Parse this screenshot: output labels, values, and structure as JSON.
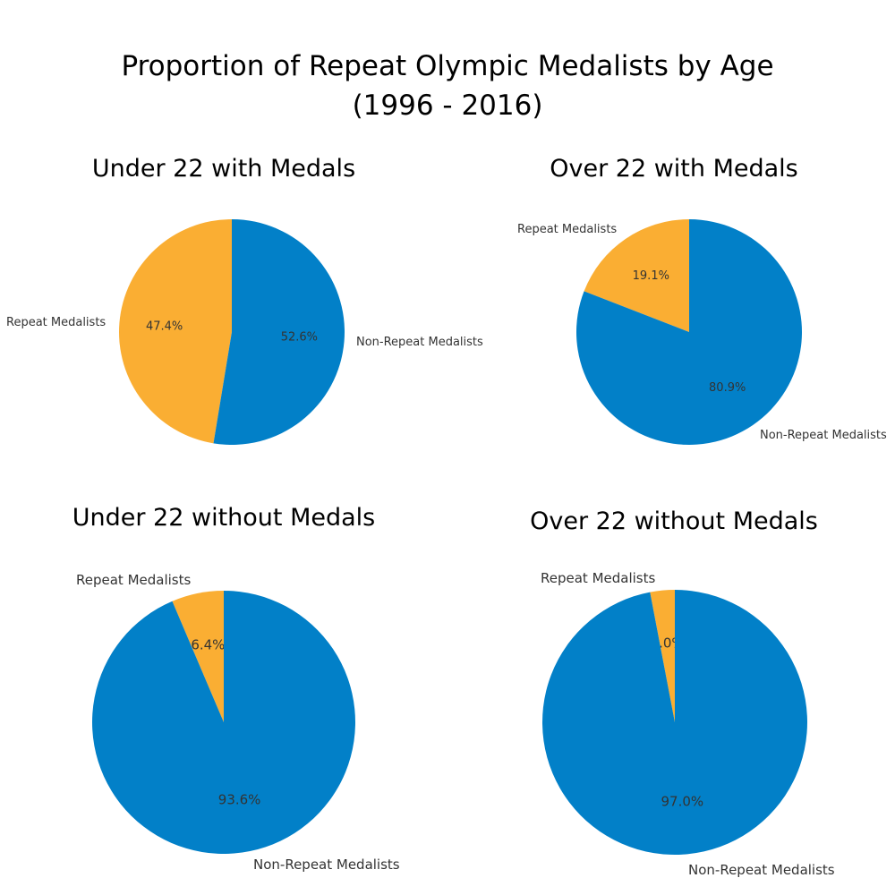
{
  "title_line1": "Proportion of Repeat Olympic Medalists by Age",
  "title_line2": "(1996 - 2016)",
  "colors": {
    "repeat": "#FAAE33",
    "non_repeat": "#0280C8"
  },
  "chart_data": [
    {
      "type": "pie",
      "title": "Under 22 with Medals",
      "labels": [
        "Repeat Medalists",
        "Non-Repeat Medalists"
      ],
      "values": [
        47.4,
        52.6
      ],
      "value_labels": [
        "47.4%",
        "52.6%"
      ]
    },
    {
      "type": "pie",
      "title": "Over 22 with Medals",
      "labels": [
        "Repeat Medalists",
        "Non-Repeat Medalists"
      ],
      "values": [
        19.1,
        80.9
      ],
      "value_labels": [
        "19.1%",
        "80.9%"
      ]
    },
    {
      "type": "pie",
      "title": "Under 22 without Medals",
      "labels": [
        "Repeat Medalists",
        "Non-Repeat Medalists"
      ],
      "values": [
        6.4,
        93.6
      ],
      "value_labels": [
        "6.4%",
        "93.6%"
      ]
    },
    {
      "type": "pie",
      "title": "Over 22 without Medals",
      "labels": [
        "Repeat Medalists",
        "Non-Repeat Medalists"
      ],
      "values": [
        3.0,
        97.0
      ],
      "value_labels": [
        "3.0%",
        "97.0%"
      ]
    }
  ]
}
